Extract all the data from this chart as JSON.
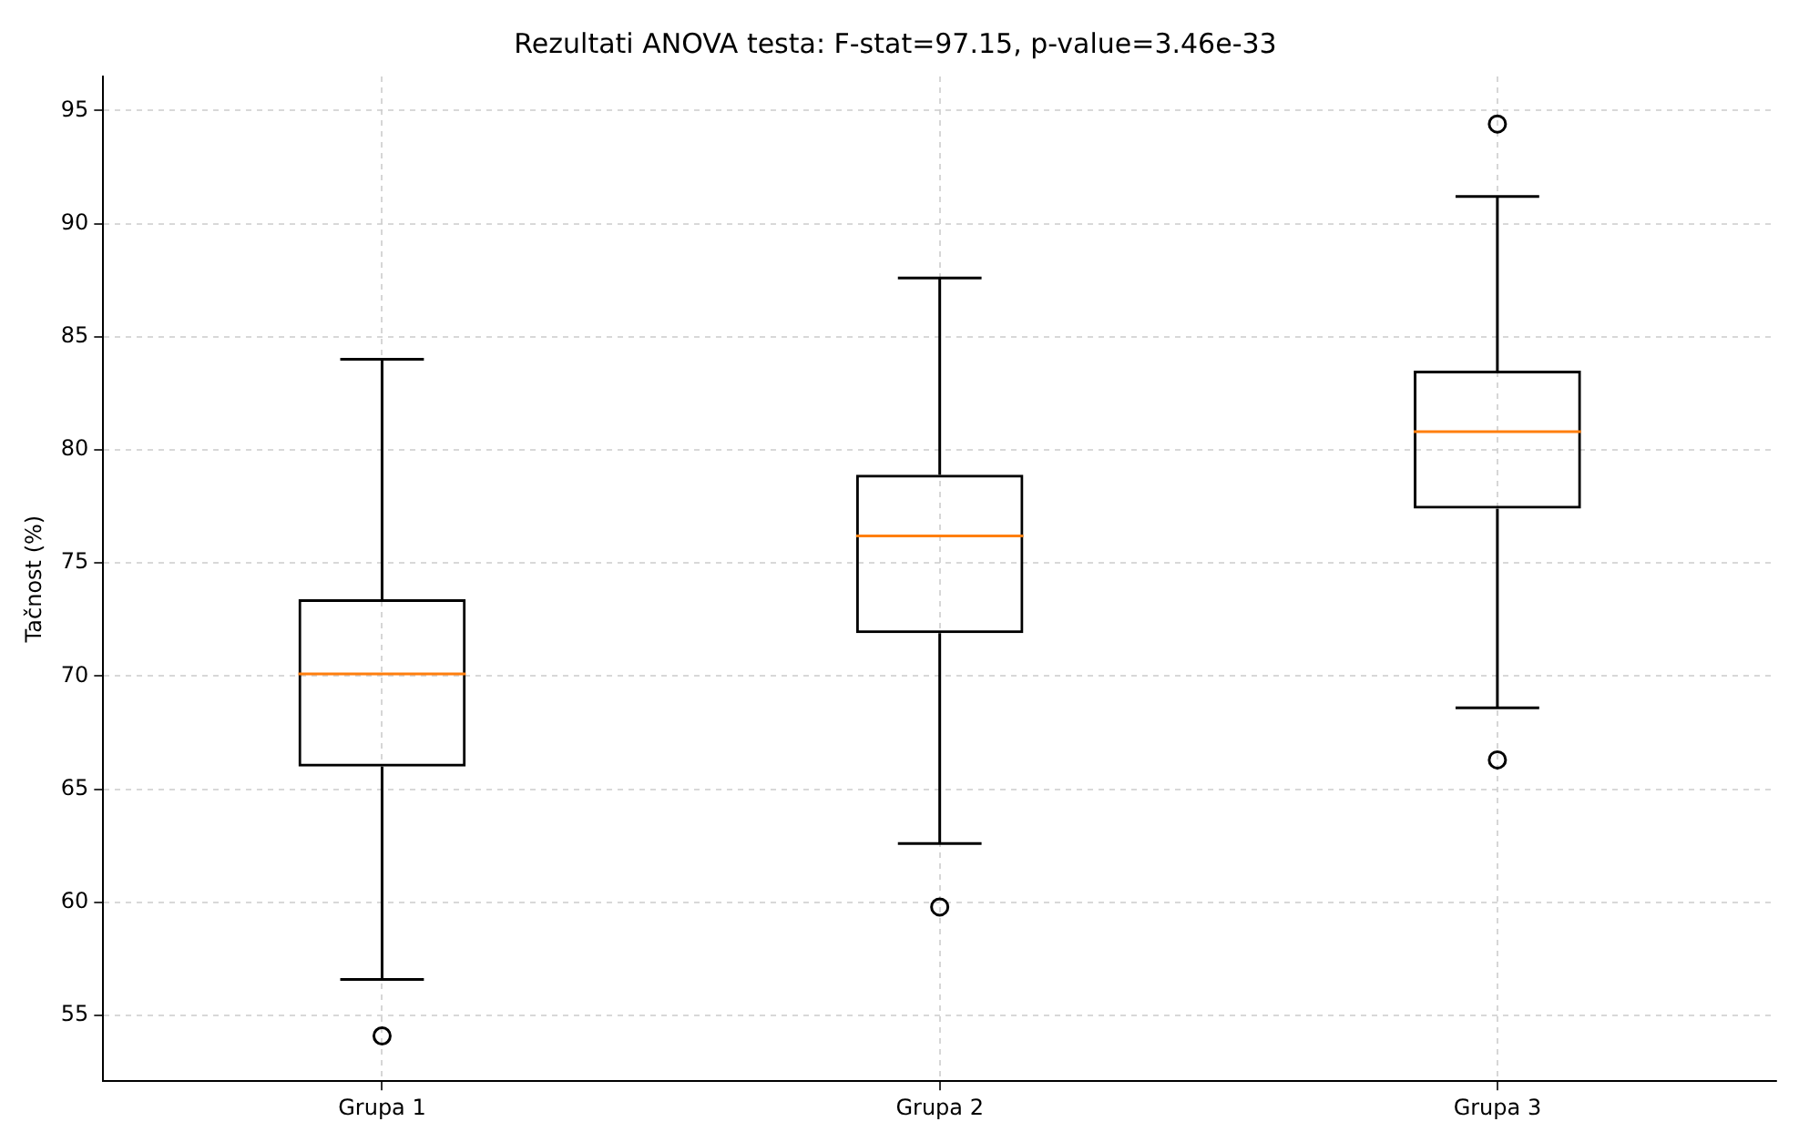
{
  "chart_data": {
    "type": "box",
    "title": "Rezultati ANOVA testa: F-stat=97.15, p-value=3.46e-33",
    "ylabel": "Tačnost (%)",
    "categories": [
      "Grupa 1",
      "Grupa 2",
      "Grupa 3"
    ],
    "boxes": [
      {
        "low": 56.6,
        "q1": 66.0,
        "median": 70.1,
        "q3": 73.4,
        "high": 84.0,
        "outliers": [
          54.1
        ]
      },
      {
        "low": 62.6,
        "q1": 71.9,
        "median": 76.2,
        "q3": 78.9,
        "high": 87.6,
        "outliers": [
          59.8
        ]
      },
      {
        "low": 68.6,
        "q1": 77.4,
        "median": 80.8,
        "q3": 83.5,
        "high": 91.2,
        "outliers": [
          66.3,
          94.4
        ]
      }
    ],
    "color": "#000000",
    "ylim": [
      52.1,
      96.5
    ],
    "yticks": [
      55,
      60,
      65,
      70,
      75,
      80,
      85,
      90,
      95
    ],
    "grid": true
  }
}
